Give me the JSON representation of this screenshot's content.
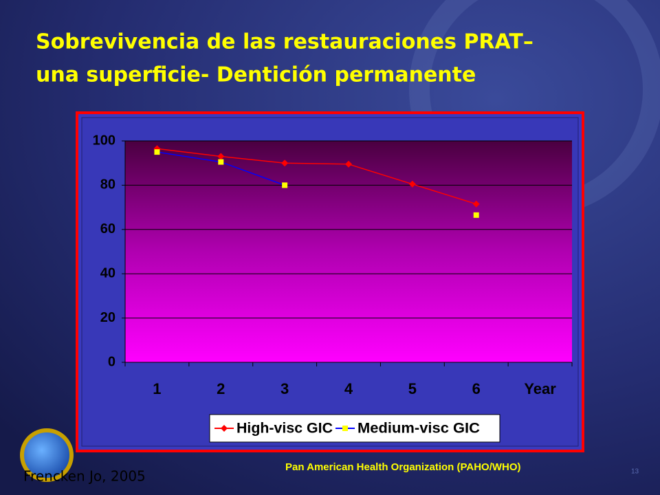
{
  "slide": {
    "title_lines": [
      "Sobrevivencia de las restauraciones PRAT–",
      "una superficie- Dentición permanente"
    ],
    "source": "Frencken Jo, 2005",
    "footer": "Pan American Health Organization (PAHO/WHO)",
    "page_number": "13"
  },
  "chart_data": {
    "type": "line",
    "categories": [
      "1",
      "2",
      "3",
      "4",
      "5",
      "6"
    ],
    "x_label": "Year",
    "series": [
      {
        "name": "High-visc GIC",
        "color": "#ff0000",
        "marker_color": "#ff0000",
        "marker": "diamond",
        "values": [
          96.5,
          93,
          90,
          89.5,
          80.5,
          71.5
        ]
      },
      {
        "name": "Medium-visc GIC",
        "color": "#0000ff",
        "marker_color": "#ffff00",
        "marker": "square",
        "values": [
          95,
          90.5,
          80,
          null,
          null,
          66.5
        ]
      }
    ],
    "ylim": [
      0,
      100
    ],
    "yticks": [
      0,
      20,
      40,
      60,
      80,
      100
    ],
    "grid": true,
    "legend": "bottom"
  }
}
